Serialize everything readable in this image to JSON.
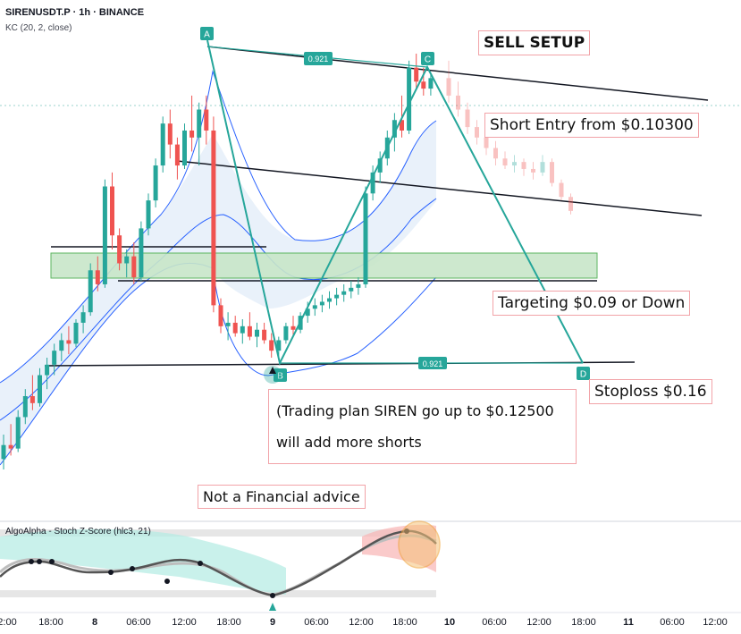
{
  "header": {
    "title": "SIRENUSDT.P · 1h · BINANCE",
    "indicator": "KC (20, 2, close)"
  },
  "annotations": {
    "sell_setup": "SELL SETUP",
    "short_entry": "Short Entry from $0.10300",
    "targeting": "Targeting $0.09 or Down",
    "stoploss": "Stoploss $0.16",
    "plan_line1": "(Trading plan SIREN go up to $0.12500",
    "plan_line2": "will add more shorts",
    "disclaimer": "Not a Financial advice"
  },
  "pattern": {
    "points": [
      "A",
      "B",
      "C",
      "D"
    ],
    "ratio_top": "0.921",
    "ratio_bottom": "0.921"
  },
  "oscillator": {
    "title": "AlgoAlpha - Stoch Z-Score (hlc3, 21)"
  },
  "colors": {
    "up": "#26a69a",
    "down": "#ef5350",
    "pattern": "#26a69a",
    "zone": "#a5d6a7",
    "keltner": "#2962ff",
    "annotation_border": "#f2a3a8"
  },
  "chart_data": {
    "type": "candlestick",
    "title": "SIRENUSDT.P · 1h · BINANCE",
    "x_ticks": [
      "2:00",
      "18:00",
      "8",
      "06:00",
      "12:00",
      "18:00",
      "9",
      "06:00",
      "12:00",
      "18:00",
      "10",
      "06:00",
      "12:00",
      "18:00",
      "11",
      "06:00",
      "12:00"
    ],
    "candles_ohlc": [
      [
        0.078,
        0.0815,
        0.0765,
        0.08
      ],
      [
        0.08,
        0.083,
        0.0785,
        0.0795
      ],
      [
        0.0795,
        0.085,
        0.079,
        0.084
      ],
      [
        0.084,
        0.088,
        0.083,
        0.087
      ],
      [
        0.087,
        0.09,
        0.085,
        0.086
      ],
      [
        0.086,
        0.091,
        0.0855,
        0.09
      ],
      [
        0.09,
        0.0925,
        0.088,
        0.0915
      ],
      [
        0.0915,
        0.0945,
        0.09,
        0.0935
      ],
      [
        0.0935,
        0.096,
        0.092,
        0.095
      ],
      [
        0.095,
        0.097,
        0.093,
        0.0945
      ],
      [
        0.0945,
        0.098,
        0.094,
        0.0975
      ],
      [
        0.0975,
        0.1,
        0.096,
        0.099
      ],
      [
        0.099,
        0.106,
        0.0985,
        0.105
      ],
      [
        0.105,
        0.107,
        0.102,
        0.103
      ],
      [
        0.103,
        0.118,
        0.1025,
        0.117
      ],
      [
        0.117,
        0.119,
        0.108,
        0.11
      ],
      [
        0.11,
        0.111,
        0.105,
        0.106
      ],
      [
        0.106,
        0.108,
        0.104,
        0.107
      ],
      [
        0.107,
        0.109,
        0.103,
        0.104
      ],
      [
        0.104,
        0.112,
        0.1035,
        0.111
      ],
      [
        0.111,
        0.116,
        0.11,
        0.115
      ],
      [
        0.115,
        0.121,
        0.114,
        0.12
      ],
      [
        0.12,
        0.127,
        0.119,
        0.126
      ],
      [
        0.126,
        0.128,
        0.121,
        0.123
      ],
      [
        0.123,
        0.124,
        0.118,
        0.12
      ],
      [
        0.12,
        0.126,
        0.1195,
        0.125
      ],
      [
        0.125,
        0.13,
        0.122,
        0.124
      ],
      [
        0.124,
        0.129,
        0.12,
        0.128
      ],
      [
        0.128,
        0.13,
        0.123,
        0.125
      ],
      [
        0.125,
        0.127,
        0.099,
        0.1
      ],
      [
        0.1,
        0.101,
        0.096,
        0.097
      ],
      [
        0.097,
        0.099,
        0.095,
        0.0975
      ],
      [
        0.0975,
        0.0985,
        0.0955,
        0.096
      ],
      [
        0.096,
        0.098,
        0.0945,
        0.097
      ],
      [
        0.097,
        0.099,
        0.095,
        0.0955
      ],
      [
        0.0955,
        0.0975,
        0.094,
        0.0965
      ],
      [
        0.0965,
        0.0975,
        0.0945,
        0.095
      ],
      [
        0.095,
        0.096,
        0.0925,
        0.0935
      ],
      [
        0.0935,
        0.0955,
        0.0925,
        0.095
      ],
      [
        0.095,
        0.0975,
        0.0945,
        0.097
      ],
      [
        0.097,
        0.0985,
        0.0955,
        0.0965
      ],
      [
        0.0965,
        0.099,
        0.096,
        0.0985
      ],
      [
        0.0985,
        0.1005,
        0.0975,
        0.0995
      ],
      [
        0.0995,
        0.101,
        0.0985,
        0.1
      ],
      [
        0.1,
        0.1015,
        0.099,
        0.1005
      ],
      [
        0.1005,
        0.102,
        0.0995,
        0.101
      ],
      [
        0.101,
        0.1025,
        0.1,
        0.1015
      ],
      [
        0.1015,
        0.103,
        0.1005,
        0.102
      ],
      [
        0.102,
        0.1035,
        0.101,
        0.1025
      ],
      [
        0.1025,
        0.104,
        0.1015,
        0.103
      ],
      [
        0.103,
        0.117,
        0.1025,
        0.116
      ],
      [
        0.116,
        0.12,
        0.115,
        0.119
      ],
      [
        0.119,
        0.122,
        0.1175,
        0.121
      ],
      [
        0.121,
        0.125,
        0.12,
        0.124
      ],
      [
        0.124,
        0.1275,
        0.122,
        0.1265
      ],
      [
        0.1265,
        0.13,
        0.124,
        0.125
      ],
      [
        0.125,
        0.135,
        0.1245,
        0.134
      ],
      [
        0.134,
        0.136,
        0.131,
        0.132
      ],
      [
        0.132,
        0.134,
        0.13,
        0.131
      ],
      [
        0.131,
        0.133,
        0.13,
        0.1325
      ]
    ],
    "projection_ohlc": [
      [
        0.1325,
        0.135,
        0.129,
        0.13
      ],
      [
        0.13,
        0.132,
        0.127,
        0.128
      ],
      [
        0.128,
        0.129,
        0.1245,
        0.1255
      ],
      [
        0.1255,
        0.1265,
        0.123,
        0.124
      ],
      [
        0.124,
        0.125,
        0.1215,
        0.1225
      ],
      [
        0.1225,
        0.1235,
        0.12,
        0.121
      ],
      [
        0.121,
        0.122,
        0.1195,
        0.12
      ],
      [
        0.12,
        0.1215,
        0.119,
        0.1205
      ],
      [
        0.1205,
        0.121,
        0.1185,
        0.1195
      ],
      [
        0.1195,
        0.1205,
        0.118,
        0.119
      ],
      [
        0.119,
        0.1215,
        0.1185,
        0.1205
      ],
      [
        0.1205,
        0.121,
        0.117,
        0.1175
      ],
      [
        0.1175,
        0.118,
        0.115,
        0.1155
      ],
      [
        0.1155,
        0.116,
        0.113,
        0.1135
      ]
    ],
    "levels": {
      "short_entry": 0.103,
      "target": 0.09,
      "stoploss": 0.16,
      "add_shorts": 0.125
    }
  }
}
